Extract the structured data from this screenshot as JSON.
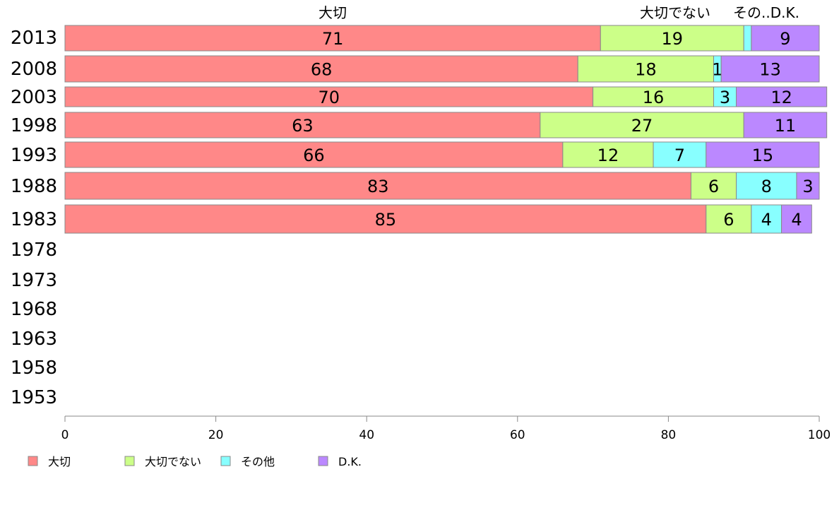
{
  "chart_data": {
    "type": "bar",
    "orientation": "horizontal",
    "stacked": true,
    "categories": [
      "2013",
      "2008",
      "2003",
      "1998",
      "1993",
      "1988",
      "1983",
      "1978",
      "1973",
      "1968",
      "1963",
      "1958",
      "1953"
    ],
    "series": [
      {
        "name": "大切",
        "color": "#ff8888",
        "values": [
          71,
          68,
          70,
          63,
          66,
          83,
          85,
          null,
          null,
          null,
          null,
          null,
          null
        ]
      },
      {
        "name": "大切でない",
        "color": "#ccff88",
        "values": [
          19,
          18,
          16,
          27,
          12,
          6,
          6,
          null,
          null,
          null,
          null,
          null,
          null
        ]
      },
      {
        "name": "その他",
        "color": "#88ffff",
        "values": [
          1,
          1,
          3,
          0,
          7,
          8,
          4,
          null,
          null,
          null,
          null,
          null,
          null
        ]
      },
      {
        "name": "D.K.",
        "color": "#bb88ff",
        "values": [
          9,
          13,
          12,
          11,
          15,
          3,
          4,
          null,
          null,
          null,
          null,
          null,
          null
        ]
      }
    ],
    "data_labels": [
      [
        "71",
        "19",
        "",
        "9"
      ],
      [
        "68",
        "18",
        "1",
        "13"
      ],
      [
        "70",
        "16",
        "3",
        "12"
      ],
      [
        "63",
        "27",
        "",
        "11"
      ],
      [
        "66",
        "12",
        "7",
        "15"
      ],
      [
        "83",
        "6",
        "8",
        "3"
      ],
      [
        "85",
        "6",
        "4",
        "4"
      ]
    ],
    "top_labels": [
      "大切",
      "大切でない",
      "その..D.K."
    ],
    "xlim": [
      0,
      100
    ],
    "xticks": [
      0,
      20,
      40,
      60,
      80,
      100
    ],
    "legend_position": "bottom-left",
    "grid": false
  }
}
